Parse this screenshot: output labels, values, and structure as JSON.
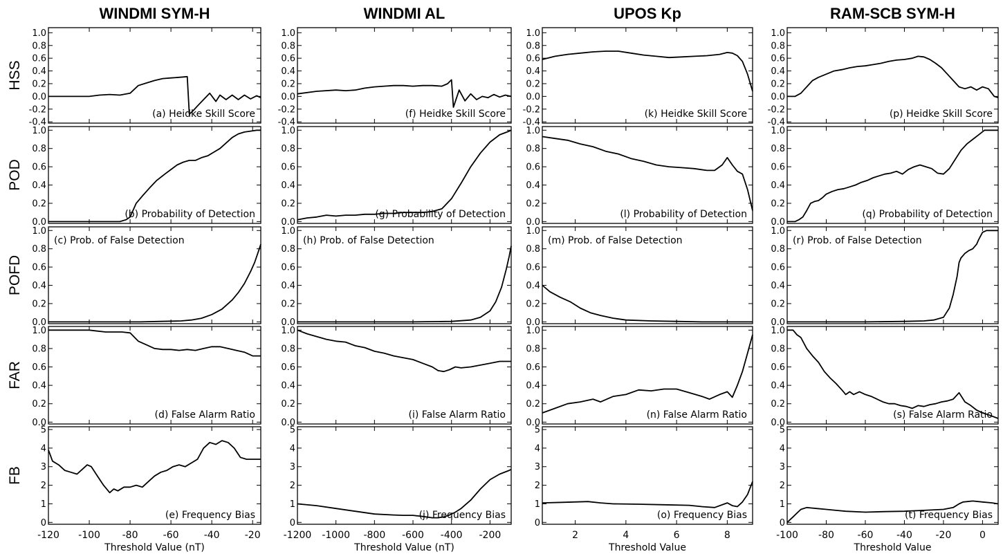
{
  "figure": {
    "columns": [
      {
        "title": "WINDMI SYM-H",
        "xlabel": "Threshold Value (nT)",
        "xlim": [
          -120,
          -16
        ],
        "xticks": [
          -120,
          -100,
          -80,
          -60,
          -40,
          -20
        ]
      },
      {
        "title": "WINDMI AL",
        "xlabel": "Threshold Value (nT)",
        "xlim": [
          -1200,
          -90
        ],
        "xticks": [
          -1200,
          -1000,
          -800,
          -600,
          -400,
          -200
        ]
      },
      {
        "title": "UPOS Kp",
        "xlabel": "Threshold Value",
        "xlim": [
          0.7,
          9.0
        ],
        "xticks": [
          2,
          4,
          6,
          8
        ]
      },
      {
        "title": "RAM-SCB SYM-H",
        "xlabel": "Threshold Value",
        "xlim": [
          -100,
          8
        ],
        "xticks": [
          -100,
          -80,
          -60,
          -40,
          -20,
          0
        ]
      }
    ],
    "rows": [
      {
        "label": "HSS",
        "ylim": [
          -0.42,
          1.08
        ],
        "yticks": [
          "1.0",
          "0.8",
          "0.6",
          "0.4",
          "0.2",
          "0.0",
          "-0.2",
          "-0.4"
        ],
        "ytick_values": [
          1.0,
          0.8,
          0.6,
          0.4,
          0.2,
          0.0,
          -0.2,
          -0.4
        ],
        "annot_pos": "bottom-right"
      },
      {
        "label": "POD",
        "ylim": [
          -0.02,
          1.04
        ],
        "yticks": [
          "1.0",
          "0.8",
          "0.6",
          "0.4",
          "0.2",
          "0.0"
        ],
        "ytick_values": [
          1.0,
          0.8,
          0.6,
          0.4,
          0.2,
          0.0
        ],
        "annot_pos": "bottom-right"
      },
      {
        "label": "POFD",
        "ylim": [
          -0.02,
          1.04
        ],
        "yticks": [
          "1.0",
          "0.8",
          "0.6",
          "0.4",
          "0.2",
          "0.0"
        ],
        "ytick_values": [
          1.0,
          0.8,
          0.6,
          0.4,
          0.2,
          0.0
        ],
        "annot_pos": "top-left"
      },
      {
        "label": "FAR",
        "ylim": [
          -0.02,
          1.04
        ],
        "yticks": [
          "1.0",
          "0.8",
          "0.6",
          "0.4",
          "0.2",
          "0.0"
        ],
        "ytick_values": [
          1.0,
          0.8,
          0.6,
          0.4,
          0.2,
          0.0
        ],
        "annot_pos": "bottom-right"
      },
      {
        "label": "FB",
        "ylim": [
          -0.1,
          5.15
        ],
        "yticks": [
          "5",
          "4",
          "3",
          "2",
          "1",
          "0"
        ],
        "ytick_values": [
          5,
          4,
          3,
          2,
          1,
          0
        ],
        "annot_pos": "bottom-right"
      }
    ]
  },
  "chart_data": [
    {
      "type": "line",
      "panel": "a",
      "col": 0,
      "row": 0,
      "annotation": "(a) Heidke Skill Score",
      "x": [
        -120,
        -110,
        -100,
        -95,
        -90,
        -85,
        -80,
        -76,
        -72,
        -68,
        -64,
        -60,
        -56,
        -52,
        -51,
        -49,
        -47,
        -44,
        -41,
        -38,
        -36,
        -33,
        -30,
        -27,
        -24,
        -21,
        -18,
        -16
      ],
      "y": [
        0,
        0,
        0,
        0.02,
        0.03,
        0.02,
        0.05,
        0.17,
        0.21,
        0.25,
        0.28,
        0.29,
        0.3,
        0.31,
        -0.28,
        -0.22,
        -0.15,
        -0.05,
        0.05,
        -0.08,
        0.02,
        -0.05,
        0.02,
        -0.05,
        0.02,
        -0.04,
        0.01,
        -0.02
      ]
    },
    {
      "type": "line",
      "panel": "b",
      "col": 0,
      "row": 1,
      "annotation": "(b) Probability of Detection",
      "x": [
        -120,
        -100,
        -90,
        -85,
        -82,
        -80,
        -77,
        -74,
        -70,
        -67,
        -63,
        -60,
        -57,
        -54,
        -51,
        -48,
        -45,
        -42,
        -39,
        -36,
        -33,
        -30,
        -27,
        -24,
        -21,
        -18,
        -16
      ],
      "y": [
        0,
        0,
        0,
        0,
        0.02,
        0.05,
        0.2,
        0.28,
        0.38,
        0.45,
        0.52,
        0.57,
        0.62,
        0.65,
        0.67,
        0.67,
        0.7,
        0.72,
        0.76,
        0.8,
        0.86,
        0.92,
        0.96,
        0.98,
        0.99,
        1.0,
        1.0
      ]
    },
    {
      "type": "line",
      "panel": "c",
      "col": 0,
      "row": 2,
      "annotation": "(c) Prob. of False Detection",
      "x": [
        -120,
        -90,
        -75,
        -65,
        -55,
        -50,
        -45,
        -40,
        -35,
        -30,
        -27,
        -24,
        -21,
        -19,
        -17,
        -16
      ],
      "y": [
        0,
        0,
        0,
        0.005,
        0.01,
        0.02,
        0.04,
        0.08,
        0.14,
        0.24,
        0.32,
        0.42,
        0.55,
        0.65,
        0.78,
        0.85
      ]
    },
    {
      "type": "line",
      "panel": "d",
      "col": 0,
      "row": 3,
      "annotation": "(d) False Alarm Ratio",
      "x": [
        -120,
        -108,
        -100,
        -96,
        -92,
        -88,
        -84,
        -80,
        -76,
        -72,
        -68,
        -64,
        -60,
        -56,
        -52,
        -48,
        -44,
        -40,
        -36,
        -32,
        -28,
        -24,
        -20,
        -16
      ],
      "y": [
        1.0,
        1.0,
        1.0,
        0.99,
        0.98,
        0.98,
        0.98,
        0.97,
        0.88,
        0.84,
        0.8,
        0.79,
        0.79,
        0.78,
        0.79,
        0.78,
        0.8,
        0.82,
        0.82,
        0.8,
        0.78,
        0.76,
        0.72,
        0.72
      ]
    },
    {
      "type": "line",
      "panel": "e",
      "col": 0,
      "row": 4,
      "annotation": "(e) Frequency Bias",
      "x": [
        -120,
        -118,
        -115,
        -112,
        -109,
        -106,
        -103,
        -101,
        -99,
        -96,
        -93,
        -90,
        -88,
        -86,
        -83,
        -80,
        -77,
        -74,
        -71,
        -68,
        -65,
        -62,
        -59,
        -56,
        -53,
        -50,
        -47,
        -44,
        -41,
        -38,
        -35,
        -32,
        -29,
        -26,
        -23,
        -20,
        -16
      ],
      "y": [
        3.9,
        3.3,
        3.1,
        2.8,
        2.7,
        2.6,
        2.9,
        3.1,
        3.0,
        2.5,
        2.0,
        1.6,
        1.8,
        1.7,
        1.9,
        1.9,
        2.0,
        1.9,
        2.2,
        2.5,
        2.7,
        2.8,
        3.0,
        3.1,
        3.0,
        3.2,
        3.4,
        4.0,
        4.3,
        4.2,
        4.4,
        4.3,
        4.0,
        3.5,
        3.4,
        3.4,
        3.4
      ]
    },
    {
      "type": "line",
      "panel": "f",
      "col": 1,
      "row": 0,
      "annotation": "(f) Heidke Skill Score",
      "x": [
        -1200,
        -1100,
        -1000,
        -950,
        -900,
        -850,
        -800,
        -750,
        -700,
        -650,
        -600,
        -550,
        -500,
        -450,
        -420,
        -400,
        -390,
        -360,
        -330,
        -300,
        -270,
        -240,
        -210,
        -180,
        -150,
        -120,
        -90
      ],
      "y": [
        0.04,
        0.08,
        0.1,
        0.09,
        0.1,
        0.13,
        0.15,
        0.16,
        0.17,
        0.17,
        0.16,
        0.17,
        0.17,
        0.16,
        0.2,
        0.26,
        -0.17,
        0.1,
        -0.07,
        0.04,
        -0.05,
        0.0,
        -0.02,
        0.03,
        -0.01,
        0.02,
        0.0
      ]
    },
    {
      "type": "line",
      "panel": "g",
      "col": 1,
      "row": 1,
      "annotation": "(g) Probability of Detection",
      "x": [
        -1200,
        -1150,
        -1100,
        -1050,
        -1000,
        -950,
        -900,
        -850,
        -800,
        -750,
        -700,
        -650,
        -600,
        -550,
        -500,
        -450,
        -400,
        -350,
        -300,
        -250,
        -200,
        -150,
        -100,
        -90
      ],
      "y": [
        0.02,
        0.04,
        0.05,
        0.07,
        0.06,
        0.07,
        0.07,
        0.08,
        0.08,
        0.09,
        0.09,
        0.1,
        0.1,
        0.1,
        0.11,
        0.14,
        0.25,
        0.42,
        0.6,
        0.75,
        0.87,
        0.95,
        0.99,
        1.0
      ]
    },
    {
      "type": "line",
      "panel": "h",
      "col": 1,
      "row": 2,
      "annotation": "(h) Prob. of False Detection",
      "x": [
        -1200,
        -600,
        -400,
        -300,
        -250,
        -200,
        -170,
        -140,
        -115,
        -100,
        -90
      ],
      "y": [
        0,
        0,
        0.005,
        0.02,
        0.05,
        0.12,
        0.22,
        0.38,
        0.58,
        0.72,
        0.83
      ]
    },
    {
      "type": "line",
      "panel": "i",
      "col": 1,
      "row": 3,
      "annotation": "(i) False Alarm Ratio",
      "x": [
        -1200,
        -1150,
        -1100,
        -1050,
        -1000,
        -950,
        -900,
        -850,
        -800,
        -750,
        -700,
        -650,
        -600,
        -550,
        -500,
        -470,
        -440,
        -410,
        -380,
        -350,
        -300,
        -250,
        -200,
        -150,
        -100,
        -90
      ],
      "y": [
        1.0,
        0.96,
        0.93,
        0.9,
        0.88,
        0.87,
        0.83,
        0.81,
        0.77,
        0.75,
        0.72,
        0.7,
        0.68,
        0.64,
        0.6,
        0.56,
        0.55,
        0.57,
        0.6,
        0.59,
        0.6,
        0.62,
        0.64,
        0.66,
        0.66,
        0.66
      ]
    },
    {
      "type": "line",
      "panel": "j",
      "col": 1,
      "row": 4,
      "annotation": "(j) Frequency Bias",
      "x": [
        -1200,
        -1100,
        -1000,
        -900,
        -800,
        -700,
        -650,
        -600,
        -550,
        -500,
        -470,
        -440,
        -410,
        -380,
        -350,
        -300,
        -250,
        -200,
        -150,
        -100,
        -90
      ],
      "y": [
        1.0,
        0.9,
        0.75,
        0.6,
        0.45,
        0.4,
        0.38,
        0.38,
        0.32,
        0.25,
        0.25,
        0.3,
        0.4,
        0.55,
        0.75,
        1.2,
        1.8,
        2.3,
        2.6,
        2.8,
        2.85
      ]
    },
    {
      "type": "line",
      "panel": "k",
      "col": 2,
      "row": 0,
      "annotation": "(k) Heidke Skill Score",
      "x": [
        0.7,
        1.2,
        1.7,
        2.2,
        2.7,
        3.2,
        3.7,
        4.2,
        4.7,
        5.2,
        5.7,
        6.2,
        6.7,
        7.2,
        7.7,
        8.0,
        8.2,
        8.4,
        8.6,
        8.8,
        9.0
      ],
      "y": [
        0.58,
        0.63,
        0.66,
        0.68,
        0.7,
        0.71,
        0.71,
        0.68,
        0.65,
        0.63,
        0.61,
        0.62,
        0.63,
        0.64,
        0.66,
        0.69,
        0.68,
        0.64,
        0.55,
        0.35,
        0.08
      ]
    },
    {
      "type": "line",
      "panel": "l",
      "col": 2,
      "row": 1,
      "annotation": "(l) Probability of Detection",
      "x": [
        0.7,
        1.2,
        1.7,
        2.2,
        2.7,
        3.2,
        3.7,
        4.2,
        4.7,
        5.2,
        5.7,
        6.2,
        6.7,
        7.2,
        7.5,
        7.8,
        8.0,
        8.2,
        8.4,
        8.6,
        8.8,
        9.0
      ],
      "y": [
        0.93,
        0.91,
        0.89,
        0.85,
        0.82,
        0.77,
        0.74,
        0.69,
        0.66,
        0.62,
        0.6,
        0.59,
        0.58,
        0.56,
        0.56,
        0.62,
        0.7,
        0.62,
        0.55,
        0.52,
        0.35,
        0.12
      ]
    },
    {
      "type": "line",
      "panel": "m",
      "col": 2,
      "row": 2,
      "annotation": "(m) Prob. of False Detection",
      "x": [
        0.7,
        1.0,
        1.4,
        1.8,
        2.2,
        2.6,
        3.0,
        3.5,
        4.0,
        5.0,
        6.0,
        7.0,
        8.0,
        9.0
      ],
      "y": [
        0.4,
        0.33,
        0.27,
        0.22,
        0.15,
        0.1,
        0.07,
        0.04,
        0.02,
        0.01,
        0.005,
        0,
        0,
        0
      ]
    },
    {
      "type": "line",
      "panel": "n",
      "col": 2,
      "row": 3,
      "annotation": "(n) False Alarm Ratio",
      "x": [
        0.7,
        1.2,
        1.7,
        2.2,
        2.7,
        3.0,
        3.5,
        4.0,
        4.5,
        5.0,
        5.5,
        6.0,
        6.5,
        7.0,
        7.3,
        7.7,
        8.0,
        8.2,
        8.4,
        8.6,
        8.8,
        9.0
      ],
      "y": [
        0.1,
        0.15,
        0.2,
        0.22,
        0.25,
        0.22,
        0.28,
        0.3,
        0.35,
        0.34,
        0.36,
        0.36,
        0.32,
        0.28,
        0.25,
        0.3,
        0.33,
        0.27,
        0.4,
        0.55,
        0.75,
        0.95
      ]
    },
    {
      "type": "line",
      "panel": "o",
      "col": 2,
      "row": 4,
      "annotation": "(o) Frequency Bias",
      "x": [
        0.7,
        1.5,
        2.5,
        3.0,
        3.5,
        4.5,
        5.5,
        6.5,
        7.0,
        7.5,
        8.0,
        8.2,
        8.4,
        8.6,
        8.8,
        9.0
      ],
      "y": [
        1.05,
        1.08,
        1.12,
        1.05,
        1.0,
        0.98,
        0.95,
        0.92,
        0.85,
        0.8,
        1.05,
        0.9,
        0.85,
        1.1,
        1.5,
        2.2
      ]
    },
    {
      "type": "line",
      "panel": "p",
      "col": 3,
      "row": 0,
      "annotation": "(p) Heidke Skill Score",
      "x": [
        -100,
        -96,
        -93,
        -90,
        -87,
        -84,
        -80,
        -76,
        -72,
        -68,
        -64,
        -60,
        -56,
        -52,
        -48,
        -44,
        -40,
        -36,
        -33,
        -30,
        -27,
        -24,
        -21,
        -18,
        -15,
        -12,
        -9,
        -6,
        -3,
        0,
        3,
        6,
        8
      ],
      "y": [
        0,
        0,
        0.05,
        0.15,
        0.25,
        0.3,
        0.35,
        0.4,
        0.42,
        0.45,
        0.47,
        0.48,
        0.5,
        0.52,
        0.55,
        0.57,
        0.58,
        0.6,
        0.63,
        0.62,
        0.58,
        0.52,
        0.45,
        0.35,
        0.25,
        0.15,
        0.12,
        0.15,
        0.1,
        0.15,
        0.12,
        0.0,
        -0.02
      ]
    },
    {
      "type": "line",
      "panel": "q",
      "col": 3,
      "row": 1,
      "annotation": "(q) Probability of Detection",
      "x": [
        -100,
        -96,
        -94,
        -92,
        -90,
        -88,
        -86,
        -84,
        -82,
        -80,
        -77,
        -74,
        -71,
        -68,
        -65,
        -62,
        -59,
        -56,
        -53,
        -50,
        -47,
        -44,
        -41,
        -38,
        -35,
        -32,
        -29,
        -26,
        -23,
        -20,
        -17,
        -14,
        -11,
        -8,
        -5,
        -2,
        1,
        4,
        8
      ],
      "y": [
        0,
        0,
        0.02,
        0.05,
        0.12,
        0.2,
        0.22,
        0.23,
        0.26,
        0.3,
        0.33,
        0.35,
        0.36,
        0.38,
        0.4,
        0.43,
        0.45,
        0.48,
        0.5,
        0.52,
        0.53,
        0.55,
        0.52,
        0.57,
        0.6,
        0.62,
        0.6,
        0.58,
        0.53,
        0.52,
        0.58,
        0.68,
        0.78,
        0.85,
        0.9,
        0.95,
        1.0,
        1.0,
        1.0
      ]
    },
    {
      "type": "line",
      "panel": "r",
      "col": 3,
      "row": 2,
      "annotation": "(r) Prob. of False Detection",
      "x": [
        -100,
        -60,
        -40,
        -30,
        -25,
        -20,
        -17,
        -15,
        -13,
        -12,
        -11,
        -9,
        -7,
        -5,
        -3,
        -2,
        0,
        2,
        5,
        8
      ],
      "y": [
        0,
        0,
        0.005,
        0.01,
        0.02,
        0.05,
        0.15,
        0.3,
        0.5,
        0.65,
        0.7,
        0.75,
        0.78,
        0.8,
        0.85,
        0.9,
        0.98,
        1.0,
        1.0,
        1.0
      ]
    },
    {
      "type": "line",
      "panel": "s",
      "col": 3,
      "row": 3,
      "annotation": "(s) False Alarm Ratio",
      "x": [
        -100,
        -97,
        -95,
        -93,
        -90,
        -87,
        -84,
        -81,
        -78,
        -75,
        -72,
        -70,
        -68,
        -66,
        -63,
        -60,
        -57,
        -54,
        -51,
        -48,
        -45,
        -42,
        -39,
        -36,
        -33,
        -30,
        -27,
        -24,
        -21,
        -18,
        -15,
        -12,
        -9,
        -6,
        -3,
        0,
        3,
        8
      ],
      "y": [
        1.0,
        1.0,
        0.95,
        0.92,
        0.8,
        0.72,
        0.65,
        0.55,
        0.48,
        0.42,
        0.35,
        0.3,
        0.33,
        0.3,
        0.33,
        0.3,
        0.28,
        0.25,
        0.22,
        0.2,
        0.2,
        0.18,
        0.17,
        0.15,
        0.18,
        0.17,
        0.19,
        0.2,
        0.22,
        0.23,
        0.25,
        0.32,
        0.22,
        0.18,
        0.13,
        0.1,
        0.08,
        0.04
      ]
    },
    {
      "type": "line",
      "panel": "t",
      "col": 3,
      "row": 4,
      "annotation": "(t) Frequency Bias",
      "x": [
        -100,
        -97,
        -95,
        -93,
        -90,
        -88,
        -85,
        -80,
        -75,
        -70,
        -60,
        -50,
        -40,
        -30,
        -20,
        -15,
        -12,
        -10,
        -5,
        0,
        5,
        8
      ],
      "y": [
        0,
        0.3,
        0.5,
        0.7,
        0.8,
        0.78,
        0.75,
        0.7,
        0.65,
        0.6,
        0.55,
        0.58,
        0.6,
        0.65,
        0.7,
        0.8,
        1.0,
        1.1,
        1.15,
        1.1,
        1.05,
        1.0
      ]
    }
  ]
}
